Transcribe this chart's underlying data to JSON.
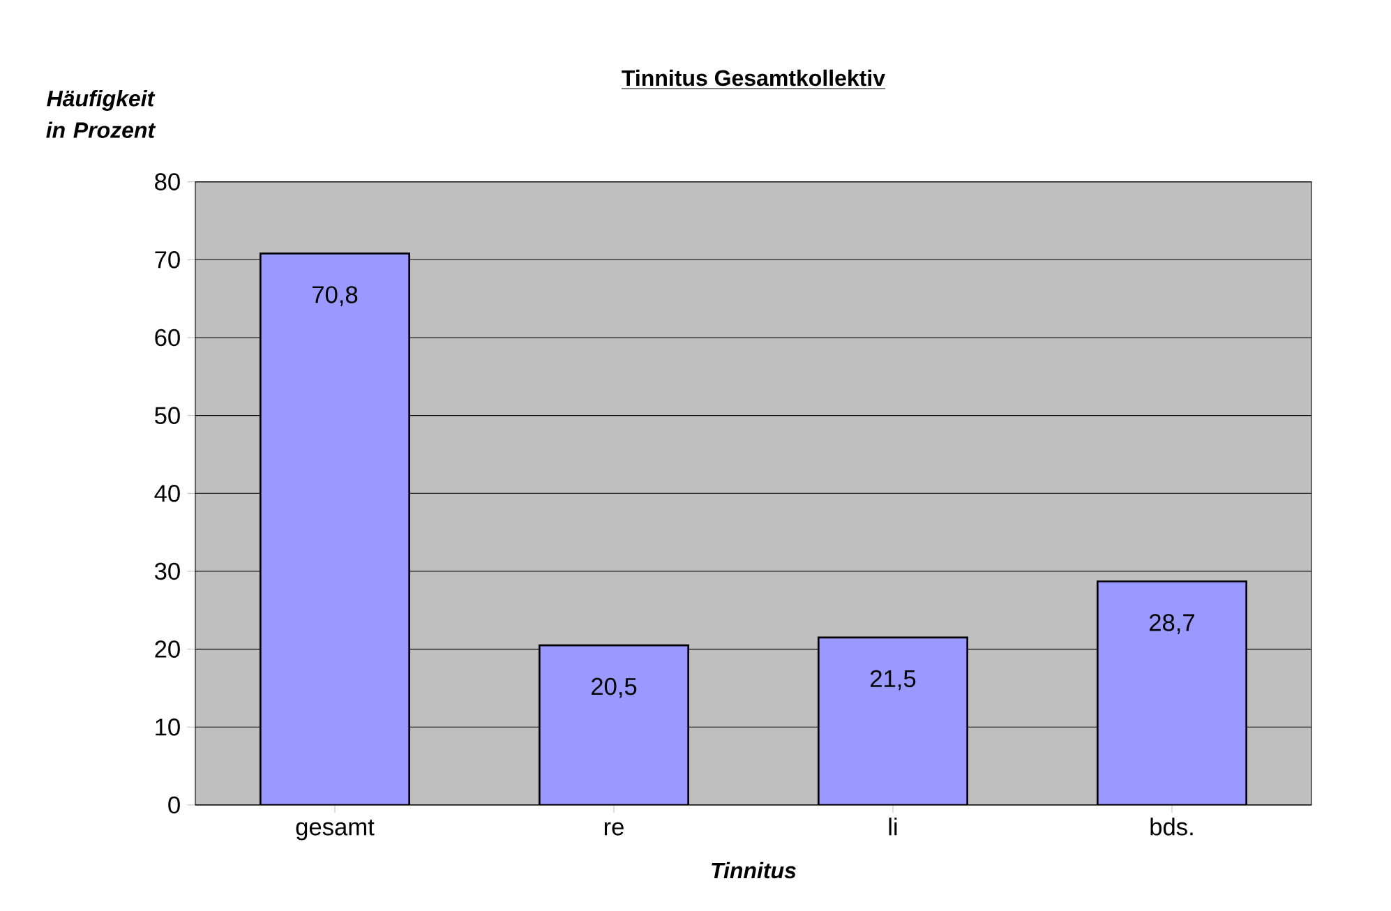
{
  "chart_data": {
    "type": "bar",
    "title": "Tinnitus Gesamtkollektiv",
    "xlabel": "Tinnitus",
    "ylabel": "Häufigkeit in Prozent",
    "categories": [
      "gesamt",
      "re",
      "li",
      "bds."
    ],
    "values": [
      70.8,
      20.5,
      21.5,
      28.7
    ],
    "value_labels": [
      "70,8",
      "20,5",
      "21,5",
      "28,7"
    ],
    "color": "#9999ff",
    "ylim": [
      0,
      80
    ],
    "yticks": [
      0,
      10,
      20,
      30,
      40,
      50,
      60,
      70,
      80
    ],
    "grid": "y"
  }
}
